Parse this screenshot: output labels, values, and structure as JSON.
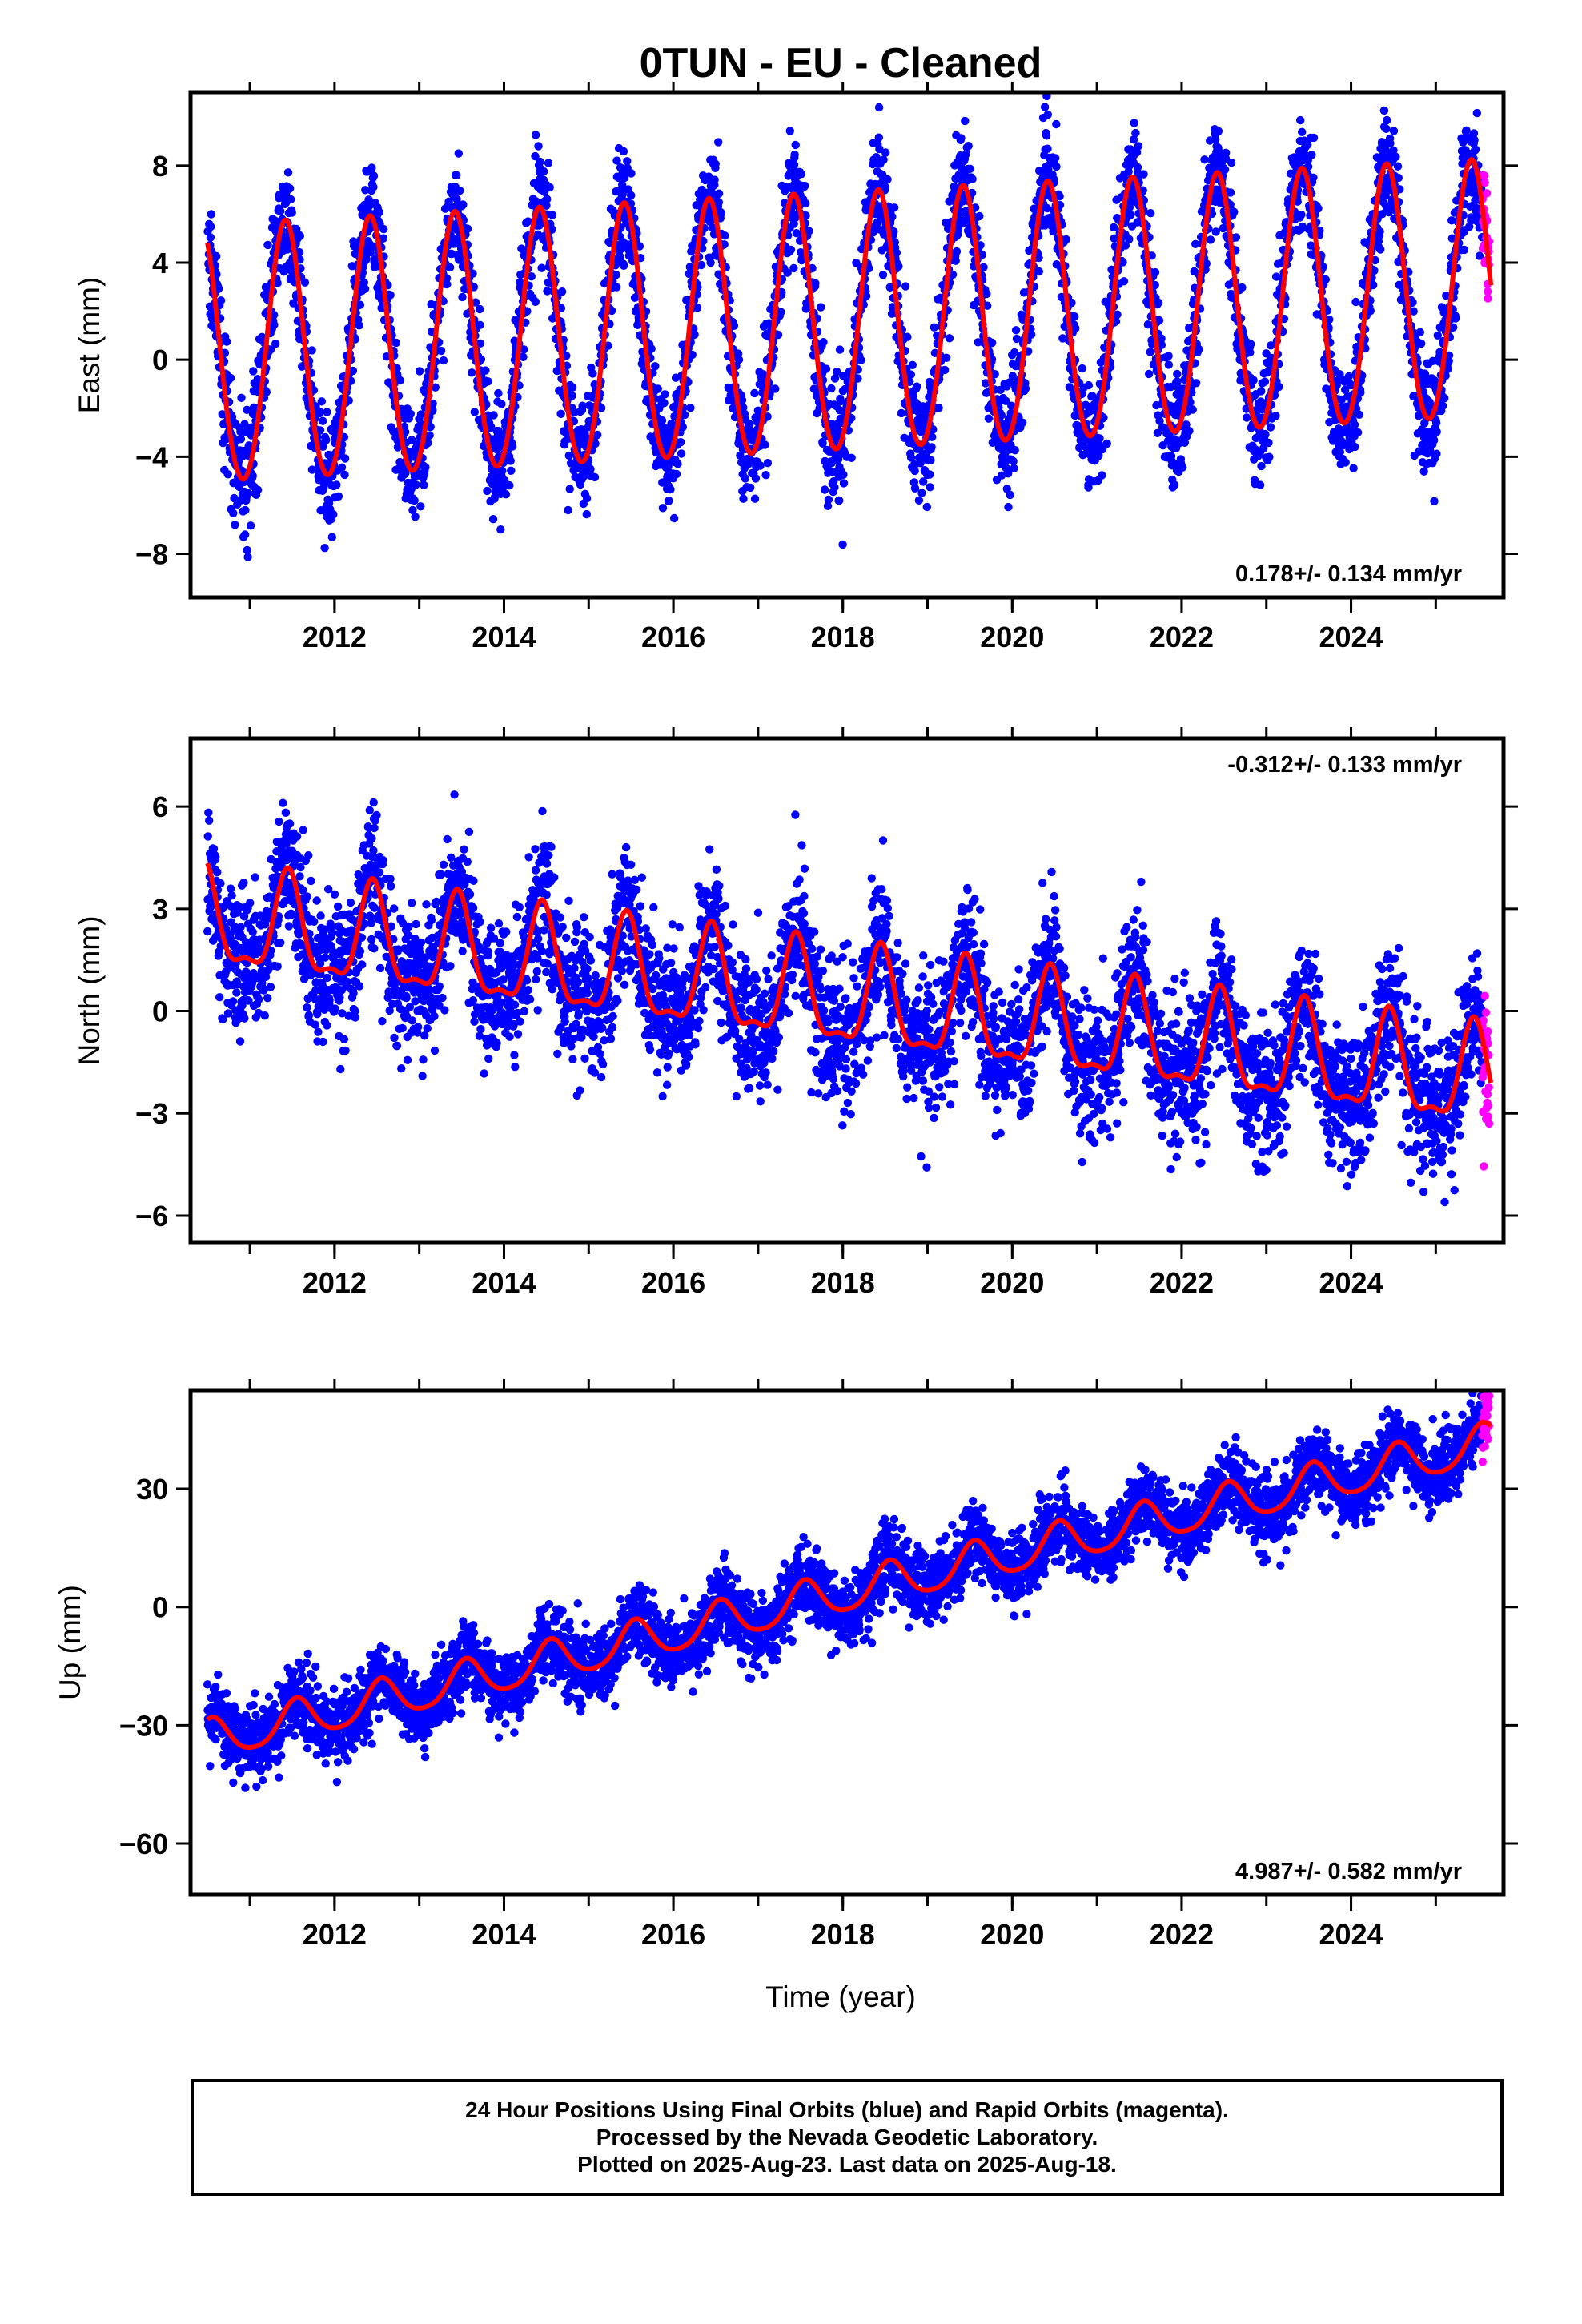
{
  "figure": {
    "title": "0TUN  - EU - Cleaned",
    "xlabel": "Time (year)"
  },
  "footer": {
    "line1": "24 Hour Positions Using Final Orbits (blue) and Rapid Orbits (magenta).",
    "line2": "Processed by the Nevada Geodetic Laboratory.",
    "line3": "Plotted on 2025-Aug-23. Last data on 2025-Aug-18."
  },
  "colors": {
    "final_orbits": "#0000ff",
    "rapid_orbits": "#ff00ff",
    "model_fit": "#ff0000"
  },
  "chart_data": [
    {
      "type": "scatter",
      "panel": "east",
      "ylabel": "East (mm)",
      "xlim": [
        2010.3,
        2025.8
      ],
      "ylim": [
        -9.8,
        11.0
      ],
      "xticks": [
        2012,
        2014,
        2016,
        2018,
        2020,
        2022,
        2024
      ],
      "yticks": [
        -8,
        -4,
        0,
        4,
        8
      ],
      "rate_label": "0.178+/- 0.134 mm/yr",
      "rate_position": "bottom-right",
      "model": {
        "start_time": 2010.5,
        "end_time": 2025.65,
        "offset": 0.0,
        "trend": 0.178,
        "annual_amplitude": 5.3,
        "annual_phase_peak": 2011.42,
        "semiannual_amplitude": 0.3,
        "noise": 1.2
      },
      "series": [
        {
          "role": "final_orbits",
          "start": 2010.5,
          "end": 2025.55
        },
        {
          "role": "rapid_orbits",
          "start": 2025.55,
          "end": 2025.63
        },
        {
          "role": "model_fit"
        }
      ]
    },
    {
      "type": "scatter",
      "panel": "north",
      "ylabel": "North (mm)",
      "xlim": [
        2010.3,
        2025.8
      ],
      "ylim": [
        -6.8,
        8.0
      ],
      "xticks": [
        2012,
        2014,
        2016,
        2018,
        2020,
        2022,
        2024
      ],
      "yticks": [
        -6,
        -3,
        0,
        3,
        6
      ],
      "rate_label": "-0.312+/- 0.133 mm/yr",
      "rate_position": "top-right",
      "model": {
        "start_time": 2010.5,
        "end_time": 2025.65,
        "offset": 2.6,
        "trend": -0.312,
        "annual_amplitude": 1.4,
        "annual_phase_peak": 2011.45,
        "semiannual_amplitude": 0.5,
        "noise": 1.0
      },
      "series": [
        {
          "role": "final_orbits",
          "start": 2010.5,
          "end": 2025.55
        },
        {
          "role": "rapid_orbits",
          "start": 2025.55,
          "end": 2025.63
        },
        {
          "role": "model_fit"
        }
      ]
    },
    {
      "type": "scatter",
      "panel": "up",
      "ylabel": "Up (mm)",
      "xlim": [
        2010.3,
        2025.8
      ],
      "ylim": [
        -73,
        55
      ],
      "xticks": [
        2012,
        2014,
        2016,
        2018,
        2020,
        2022,
        2024
      ],
      "yticks": [
        -60,
        -30,
        0,
        30
      ],
      "rate_label": "4.987+/- 0.582 mm/yr",
      "rate_position": "bottom-right",
      "model": {
        "start_time": 2010.5,
        "end_time": 2025.65,
        "offset": -34.0,
        "trend": 4.987,
        "annual_amplitude": 5.0,
        "annual_phase_peak": 2011.55,
        "semiannual_amplitude": 0.8,
        "noise": 4.5
      },
      "series": [
        {
          "role": "final_orbits",
          "start": 2010.5,
          "end": 2025.55
        },
        {
          "role": "rapid_orbits",
          "start": 2025.55,
          "end": 2025.63
        },
        {
          "role": "model_fit"
        }
      ]
    }
  ]
}
